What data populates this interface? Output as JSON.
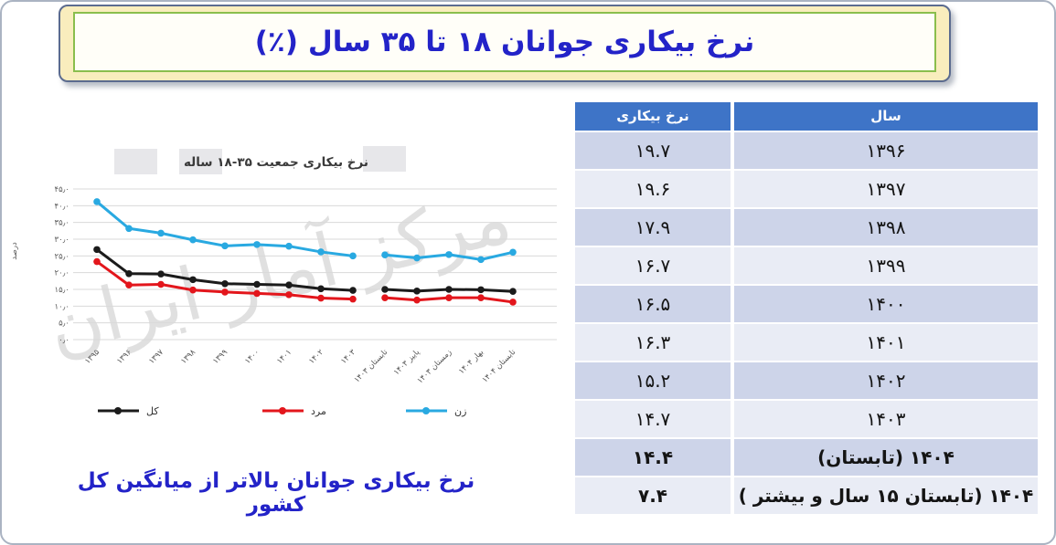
{
  "banner": {
    "title": "نرخ بیکاری جوانان ۱۸ تا ۳۵ سال  (٪)"
  },
  "watermark": {
    "text": "مرکز آمار ایران"
  },
  "caption": {
    "text": "نرخ بیکاری جوانان بالاتر از میانگین کل کشور"
  },
  "table": {
    "col_year_label": "سال",
    "col_rate_label": "نرخ بیکاری",
    "rows": [
      {
        "year": "۱۳۹۶",
        "rate": "۱۹.۷",
        "bold": false
      },
      {
        "year": "۱۳۹۷",
        "rate": "۱۹.۶",
        "bold": false
      },
      {
        "year": "۱۳۹۸",
        "rate": "۱۷.۹",
        "bold": false
      },
      {
        "year": "۱۳۹۹",
        "rate": "۱۶.۷",
        "bold": false
      },
      {
        "year": "۱۴۰۰",
        "rate": "۱۶.۵",
        "bold": false
      },
      {
        "year": "۱۴۰۱",
        "rate": "۱۶.۳",
        "bold": false
      },
      {
        "year": "۱۴۰۲",
        "rate": "۱۵.۲",
        "bold": false
      },
      {
        "year": "۱۴۰۳",
        "rate": "۱۴.۷",
        "bold": false
      },
      {
        "year": "۱۴۰۴ (تابستان)",
        "rate": "۱۴.۴",
        "bold": true
      },
      {
        "year": "۱۴۰۴ (تابستان  ۱۵ سال و بیشتر )",
        "rate": "۷.۴",
        "bold": true
      }
    ]
  },
  "colors": {
    "table_header_bg": "#3e74c7",
    "row_dark": "#cdd4e9",
    "row_light": "#e9ecf5",
    "grid": "#d9d9d9",
    "banner_text": "#2323c8"
  },
  "chart_data": {
    "type": "line",
    "title": "نرخ بیکاری جمعیت ۳۵-۱۸ ساله",
    "ylabel": "درصد",
    "ylim": [
      0,
      45
    ],
    "grid": true,
    "legend_position": "bottom",
    "ytick_values": [
      0,
      5,
      10,
      15,
      20,
      25,
      30,
      35,
      40,
      45
    ],
    "ytick_labels": [
      "۰٫۰",
      "۵٫۰",
      "۱۰٫۰",
      "۱۵٫۰",
      "۲۰٫۰",
      "۲۵٫۰",
      "۳۰٫۰",
      "۳۵٫۰",
      "۴۰٫۰",
      "۴۵٫۰"
    ],
    "categories": [
      "۱۳۹۵",
      "۱۳۹۶",
      "۱۳۹۷",
      "۱۳۹۸",
      "۱۳۹۹",
      "۱۴۰۰",
      "۱۴۰۱",
      "۱۴۰۲",
      "۱۴۰۳",
      "تابستان ۱۴۰۳",
      "پاییز ۱۴۰۳",
      "زمستان ۱۴۰۳",
      "بهار ۱۴۰۴",
      "تابستان ۱۴۰۴"
    ],
    "gap_after_index": 8,
    "series": [
      {
        "key": "total",
        "name": "کل",
        "color": "#1b1b1b",
        "values": [
          26.9,
          19.7,
          19.6,
          17.9,
          16.7,
          16.5,
          16.3,
          15.2,
          14.7,
          15.0,
          14.5,
          15.0,
          14.9,
          14.4
        ]
      },
      {
        "key": "men",
        "name": "مرد",
        "color": "#e3161c",
        "values": [
          23.3,
          16.3,
          16.5,
          14.8,
          14.2,
          13.8,
          13.4,
          12.4,
          12.1,
          12.5,
          11.8,
          12.5,
          12.5,
          11.2
        ]
      },
      {
        "key": "women",
        "name": "زن",
        "color": "#29a9e1",
        "values": [
          41.2,
          33.2,
          31.8,
          29.8,
          28.0,
          28.4,
          27.9,
          26.2,
          25.0,
          25.3,
          24.4,
          25.4,
          23.9,
          26.1
        ]
      }
    ]
  }
}
